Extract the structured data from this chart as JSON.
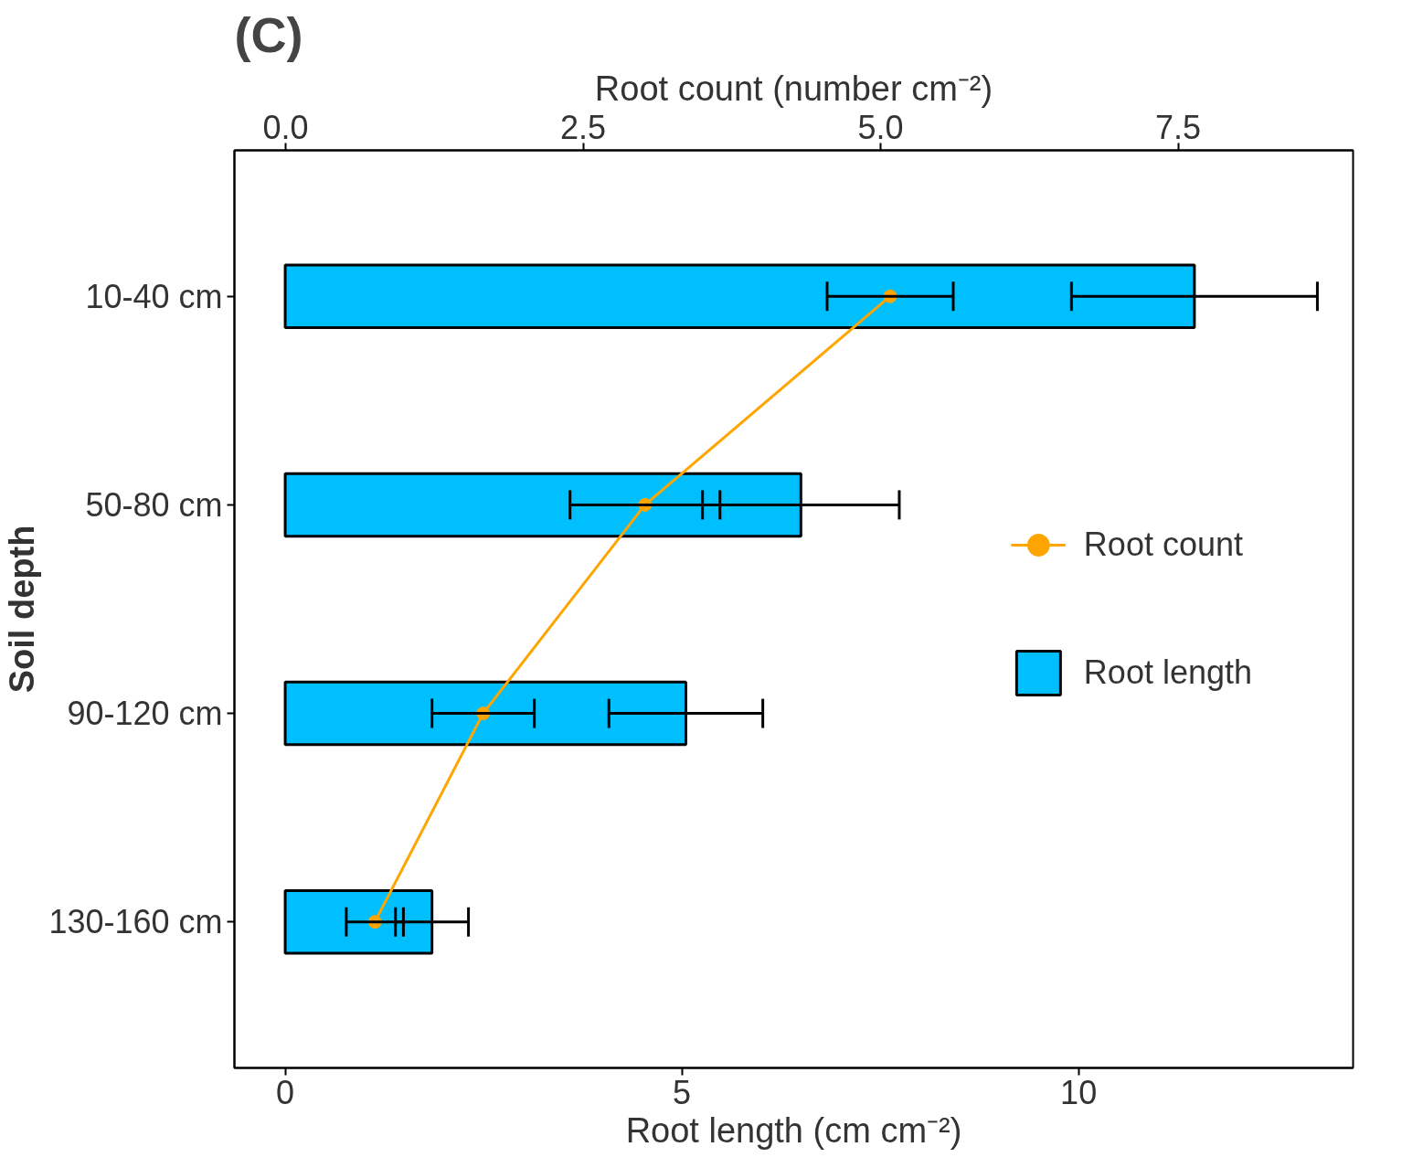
{
  "chart_data": {
    "type": "bar",
    "orientation": "horizontal",
    "title": "(C)",
    "xlabel": "Root length (cm cm⁻²)",
    "x2label": "Root count (number cm⁻²)",
    "ylabel": "Soil depth",
    "categories": [
      "10-40 cm",
      "50-80 cm",
      "90-120 cm",
      "130-160 cm"
    ],
    "series": [
      {
        "name": "Root length",
        "color": "#00bfff",
        "values": [
          11.46,
          6.5,
          5.05,
          1.85
        ],
        "errors": [
          1.55,
          1.24,
          0.97,
          0.46
        ]
      },
      {
        "name": "Root count",
        "type": "line",
        "axis": "x2",
        "color": "#ffa500",
        "values": [
          5.08,
          3.02,
          1.66,
          0.75
        ],
        "errors": [
          0.53,
          0.63,
          0.43,
          0.24
        ]
      }
    ],
    "xlim": [
      -0.64,
      13.46
    ],
    "xticks": [
      0,
      5,
      10
    ],
    "x2lim": [
      -0.43,
      8.97
    ],
    "x2ticks": [
      {
        "value": 0,
        "label": "0.0"
      },
      {
        "value": 2.5,
        "label": "2.5"
      },
      {
        "value": 5,
        "label": "5.0"
      },
      {
        "value": 7.5,
        "label": "7.5"
      }
    ],
    "marker": "circle",
    "grid": false,
    "legend": "right"
  }
}
